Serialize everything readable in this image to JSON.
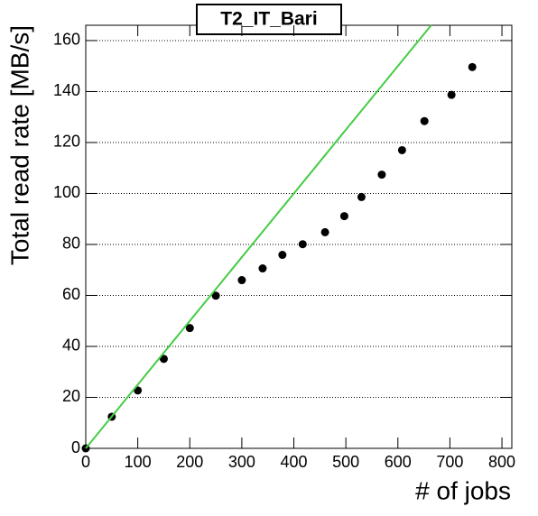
{
  "chart_data": {
    "type": "scatter",
    "title": "T2_IT_Bari",
    "x_label": "# of jobs",
    "y_label": "Total read rate [MB/s]",
    "series": [
      {
        "kind": "markers",
        "color": "#000000",
        "x": [
          0,
          50,
          100,
          150,
          200,
          250,
          300,
          340,
          378,
          417,
          460,
          497,
          530,
          569,
          608,
          651,
          703,
          743
        ],
        "values": [
          0,
          12.4,
          22.7,
          35.1,
          47.2,
          59.9,
          66,
          70.6,
          75.9,
          80.1,
          84.8,
          91.1,
          98.6,
          107.4,
          117,
          128.4,
          138.7,
          149.6
        ]
      },
      {
        "kind": "line",
        "color": "#44cc44",
        "x": [
          0,
          664
        ],
        "values": [
          0,
          166
        ]
      }
    ],
    "xlim": [
      0,
      819
    ],
    "ylim": [
      0,
      166
    ],
    "xticks": [
      0,
      100,
      200,
      300,
      400,
      500,
      600,
      700,
      800
    ],
    "yticks": [
      0,
      20,
      40,
      60,
      80,
      100,
      120,
      140,
      160
    ],
    "grid": "y"
  }
}
